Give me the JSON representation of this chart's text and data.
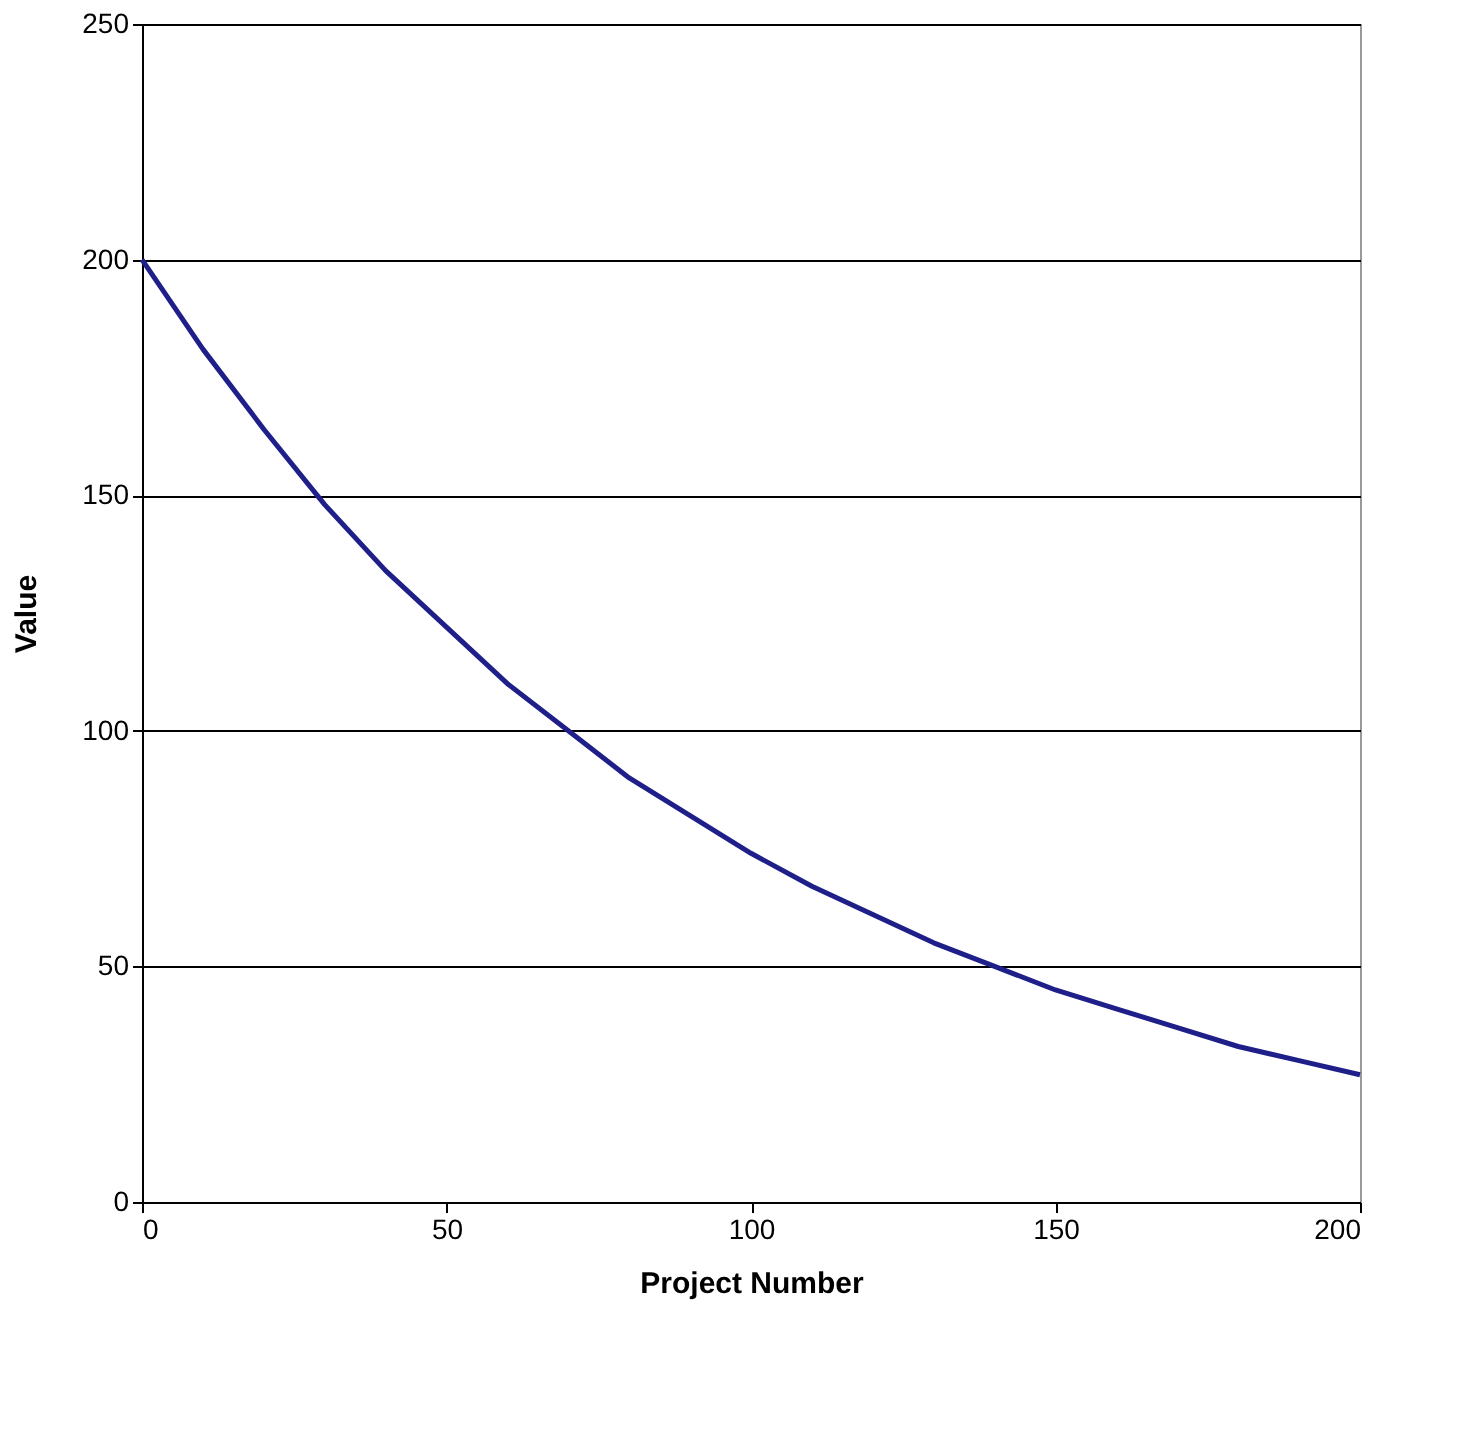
{
  "chart_data": {
    "type": "line",
    "xlabel": "Project Number",
    "ylabel": "Value",
    "x": [
      0,
      10,
      20,
      30,
      40,
      50,
      60,
      70,
      80,
      90,
      100,
      110,
      120,
      130,
      140,
      150,
      160,
      170,
      180,
      190,
      200
    ],
    "series": [
      {
        "color": "#1f1f8a",
        "values": [
          200,
          181,
          164,
          148,
          134,
          122,
          110,
          100,
          90,
          82,
          74,
          67,
          61,
          55,
          50,
          45,
          41,
          37,
          33,
          30,
          27
        ]
      }
    ],
    "xlim": [
      0,
      200
    ],
    "xticks": [
      0,
      50,
      100,
      150,
      200
    ],
    "ylim": [
      0,
      250
    ],
    "yticks": [
      0,
      50,
      100,
      150,
      200,
      250
    ],
    "grid": "y",
    "marker": "none",
    "line_style": "solid"
  }
}
